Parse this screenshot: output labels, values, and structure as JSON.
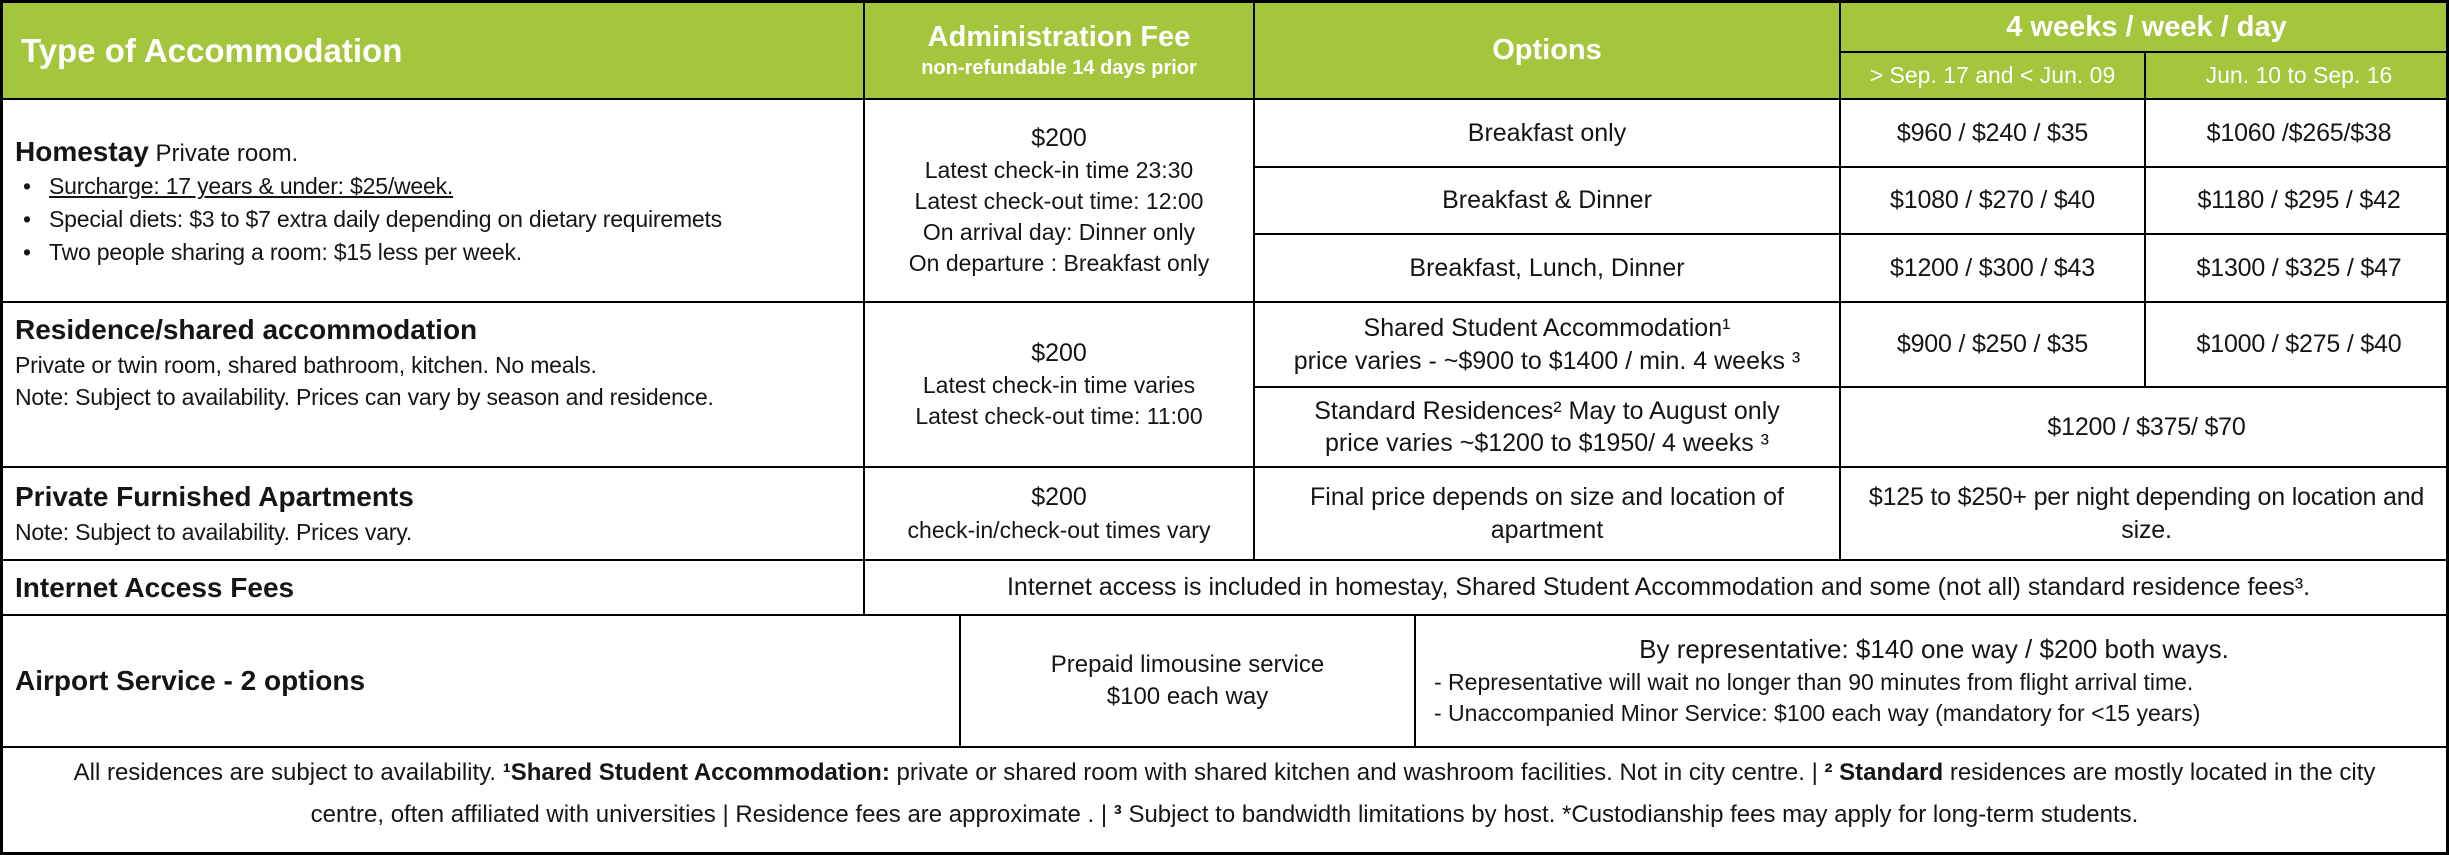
{
  "colors": {
    "header_green": "#A3C63C",
    "border_black": "#000000",
    "text_black": "#151515"
  },
  "table": {
    "header": {
      "type_col": "Type of Accommodation",
      "admin_fee_title": "Administration Fee",
      "admin_fee_sub": "non-refundable  14 days prior",
      "options_col": "Options",
      "pricing_title": "4 weeks / week / day",
      "season_low": "> Sep. 17 and < Jun. 09",
      "season_high": "Jun. 10 to Sep. 16"
    },
    "homestay": {
      "title": "Homestay",
      "title_rest": " Private room.",
      "bullets": [
        "Surcharge: 17 years & under: $25/week.",
        "Special diets: $3 to $7 extra daily depending on dietary requiremets",
        "Two people sharing a room: $15 less per week."
      ],
      "fee_lines": [
        "$200",
        "Latest check-in time 23:30",
        "Latest check-out time: 12:00",
        "On arrival day: Dinner only",
        "On departure : Breakfast only"
      ],
      "options": [
        {
          "label": "Breakfast only",
          "low": "$960 / $240 / $35",
          "high": "$1060 /$265/$38"
        },
        {
          "label": "Breakfast & Dinner",
          "low": "$1080 / $270  / $40",
          "high": "$1180 / $295 / $42"
        },
        {
          "label": "Breakfast, Lunch, Dinner",
          "low": "$1200 / $300 / $43",
          "high": "$1300 / $325 / $47"
        }
      ]
    },
    "residence": {
      "title": "Residence/shared accommodation",
      "desc1": "Private or twin room, shared bathroom, kitchen. No meals.",
      "desc2": "Note: Subject to availability. Prices can vary by season and residence.",
      "fee_lines": [
        "$200",
        "Latest check-in time varies",
        "Latest check-out time: 11:00"
      ],
      "option1": {
        "line1": "Shared Student Accommodation¹",
        "line2": "price varies - ~$900 to $1400 / min. 4 weeks ³",
        "low": "$900 / $250 / $35",
        "high": "$1000 / $275 / $40"
      },
      "option2": {
        "line1": "Standard Residences² May to August only",
        "line2": "price varies ~$1200 to $1950/ 4 weeks ³",
        "price": "$1200 / $375/ $70"
      }
    },
    "apartments": {
      "title": "Private Furnished Apartments",
      "desc": "Note: Subject to availability. Prices vary.",
      "fee_lines": [
        "$200",
        "check-in/check-out times vary"
      ],
      "option": "Final price depends on size and location of apartment",
      "price": "$125 to $250+ per night depending on location and size."
    },
    "internet": {
      "title": "Internet Access Fees",
      "text": "Internet access is included in homestay, Shared Student Accommodation  and some (not all) standard residence fees³."
    },
    "airport": {
      "title": "Airport Service - 2 options",
      "option1_line1": "Prepaid limousine service",
      "option1_line2": "$100 each way",
      "option2_heading": "By representative: $140 one way / $200 both ways.",
      "option2_note1": "- Representative will wait no longer than 90 minutes from flight arrival time.",
      "option2_note2": "- Unaccompanied Minor Service: $100 each way (mandatory for <15 years)"
    },
    "footnote_segments": [
      {
        "text": "All residences are subject to availability. ",
        "bold": false
      },
      {
        "text": "¹Shared Student Accommodation:",
        "bold": true
      },
      {
        "text": " private or shared room with  shared kitchen and washroom facilities. Not in city centre.  |  ",
        "bold": false
      },
      {
        "text": "² Standard",
        "bold": true
      },
      {
        "text": " residences are mostly located in the city centre, often affiliated with universities  |  Residence fees are approximate .  |  ",
        "bold": false
      },
      {
        "text": "³ ",
        "bold": true
      },
      {
        "text": "Subject to bandwidth limitations by host. *Custodianship fees may apply for long-term students.",
        "bold": false
      }
    ]
  }
}
